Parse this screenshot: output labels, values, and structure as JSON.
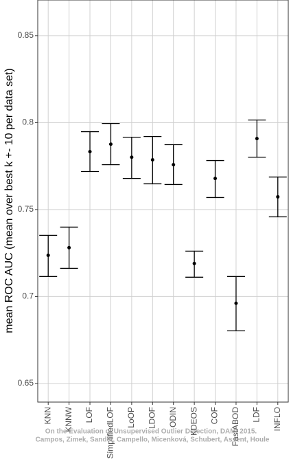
{
  "chart_data": {
    "type": "errorbar",
    "ylabel": "mean ROC AUC (mean over best k +- 10 per data set)",
    "categories": [
      "KNN",
      "KNNW",
      "LOF",
      "SimplifiedLOF",
      "LoOP",
      "LDOF",
      "ODIN",
      "KDEOS",
      "COF",
      "FastABOD",
      "LDF",
      "INFLO"
    ],
    "series": [
      {
        "color": "#000000",
        "values": [
          0.7237,
          0.7281,
          0.7833,
          0.7876,
          0.7801,
          0.7786,
          0.7758,
          0.719,
          0.7679,
          0.6961,
          0.7908,
          0.7573
        ],
        "lower": [
          0.7115,
          0.7162,
          0.7719,
          0.7758,
          0.7679,
          0.7648,
          0.7644,
          0.7111,
          0.7569,
          0.6803,
          0.7801,
          0.7458
        ],
        "upper": [
          0.7352,
          0.7399,
          0.7948,
          0.7995,
          0.7916,
          0.792,
          0.7873,
          0.7261,
          0.7782,
          0.7115,
          0.8015,
          0.7687
        ]
      }
    ],
    "ylim": [
      0.6393,
      0.8705
    ],
    "yticks": [
      0.65,
      0.7,
      0.75,
      0.8,
      0.85
    ],
    "grid": true,
    "annotation": "On the Evaluation of Unsupervised Outlier Detection, DAMI 2015.",
    "annotation2": "Campos, Zimek, Sander, Campello, Micenková, Schubert, Assent, Houle"
  }
}
